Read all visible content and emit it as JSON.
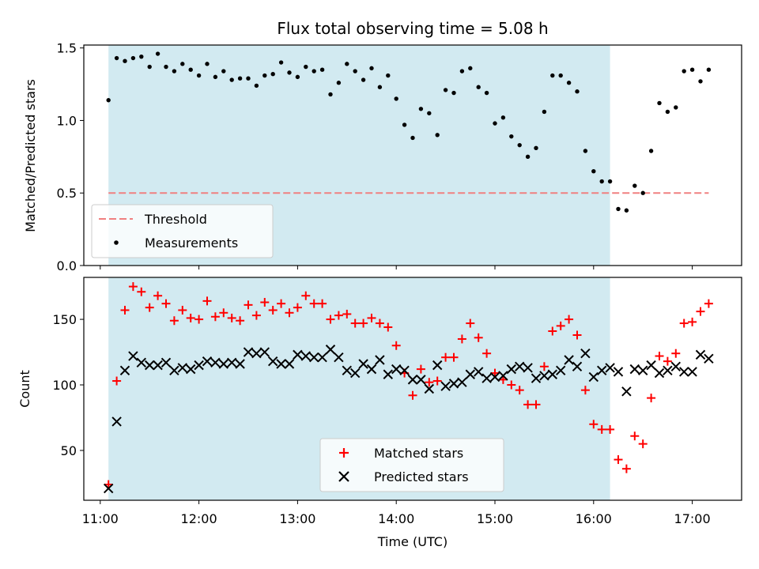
{
  "chart_data": {
    "type": "scatter",
    "title": "Flux total observing time = 5.08 h",
    "xlabel": "Time (UTC)",
    "x_ticks": [
      "11:00",
      "12:00",
      "13:00",
      "14:00",
      "15:00",
      "16:00",
      "17:00"
    ],
    "x_range": [
      "10:50",
      "17:30"
    ],
    "observing_window": [
      "11:05",
      "16:10"
    ],
    "colors": {
      "window": "#add8e6",
      "threshold": "#f08080",
      "measurements": "#000000",
      "matched": "#ff0000",
      "predicted": "#000000"
    },
    "panels": [
      {
        "ylabel": "Matched/Predicted stars",
        "ylim": [
          0,
          1.52
        ],
        "y_ticks": [
          "0.0",
          "0.5",
          "1.0",
          "1.5"
        ],
        "legend_position": "lower-left",
        "threshold": {
          "name": "Threshold",
          "value": 0.5,
          "x_range": [
            "11:05",
            "17:10"
          ]
        },
        "series": [
          {
            "name": "Measurements",
            "marker": "dot",
            "x": [
              "11:05",
              "11:10",
              "11:15",
              "11:20",
              "11:25",
              "11:30",
              "11:35",
              "11:40",
              "11:45",
              "11:50",
              "11:55",
              "12:00",
              "12:05",
              "12:10",
              "12:15",
              "12:20",
              "12:25",
              "12:30",
              "12:35",
              "12:40",
              "12:45",
              "12:50",
              "12:55",
              "13:00",
              "13:05",
              "13:10",
              "13:15",
              "13:20",
              "13:25",
              "13:30",
              "13:35",
              "13:40",
              "13:45",
              "13:50",
              "13:55",
              "14:00",
              "14:05",
              "14:10",
              "14:15",
              "14:20",
              "14:25",
              "14:30",
              "14:35",
              "14:40",
              "14:45",
              "14:50",
              "14:55",
              "15:00",
              "15:05",
              "15:10",
              "15:15",
              "15:20",
              "15:25",
              "15:30",
              "15:35",
              "15:40",
              "15:45",
              "15:50",
              "15:55",
              "16:00",
              "16:05",
              "16:10",
              "16:15",
              "16:20",
              "16:25",
              "16:30",
              "16:35",
              "16:40",
              "16:45",
              "16:50",
              "16:55",
              "17:00",
              "17:05",
              "17:10"
            ],
            "y": [
              1.14,
              1.43,
              1.41,
              1.43,
              1.44,
              1.37,
              1.46,
              1.37,
              1.34,
              1.39,
              1.35,
              1.31,
              1.39,
              1.3,
              1.34,
              1.28,
              1.29,
              1.29,
              1.24,
              1.31,
              1.32,
              1.4,
              1.33,
              1.3,
              1.37,
              1.34,
              1.35,
              1.18,
              1.26,
              1.39,
              1.34,
              1.28,
              1.36,
              1.23,
              1.31,
              1.15,
              0.97,
              0.88,
              1.08,
              1.05,
              0.9,
              1.21,
              1.19,
              1.34,
              1.36,
              1.23,
              1.19,
              0.98,
              1.02,
              0.89,
              0.83,
              0.75,
              0.81,
              1.06,
              1.31,
              1.31,
              1.26,
              1.2,
              0.79,
              0.65,
              0.58,
              0.58,
              0.39,
              0.38,
              0.55,
              0.5,
              0.79,
              1.12,
              1.06,
              1.09,
              1.34,
              1.35,
              1.27,
              1.35
            ]
          }
        ]
      },
      {
        "ylabel": "Count",
        "ylim": [
          12,
          182
        ],
        "y_ticks": [
          "50",
          "100",
          "150"
        ],
        "legend_position": "lower-center",
        "series": [
          {
            "name": "Matched stars",
            "marker": "plus",
            "x": [
              "11:05",
              "11:10",
              "11:15",
              "11:20",
              "11:25",
              "11:30",
              "11:35",
              "11:40",
              "11:45",
              "11:50",
              "11:55",
              "12:00",
              "12:05",
              "12:10",
              "12:15",
              "12:20",
              "12:25",
              "12:30",
              "12:35",
              "12:40",
              "12:45",
              "12:50",
              "12:55",
              "13:00",
              "13:05",
              "13:10",
              "13:15",
              "13:20",
              "13:25",
              "13:30",
              "13:35",
              "13:40",
              "13:45",
              "13:50",
              "13:55",
              "14:00",
              "14:05",
              "14:10",
              "14:15",
              "14:20",
              "14:25",
              "14:30",
              "14:35",
              "14:40",
              "14:45",
              "14:50",
              "14:55",
              "15:00",
              "15:05",
              "15:10",
              "15:15",
              "15:20",
              "15:25",
              "15:30",
              "15:35",
              "15:40",
              "15:45",
              "15:50",
              "15:55",
              "16:00",
              "16:05",
              "16:10",
              "16:15",
              "16:20",
              "16:25",
              "16:30",
              "16:35",
              "16:40",
              "16:45",
              "16:50",
              "16:55",
              "17:00",
              "17:05",
              "17:10"
            ],
            "y": [
              24,
              103,
              157,
              175,
              171,
              159,
              168,
              162,
              149,
              157,
              151,
              150,
              164,
              152,
              155,
              151,
              149,
              161,
              153,
              163,
              157,
              162,
              155,
              159,
              168,
              162,
              162,
              150,
              153,
              154,
              147,
              147,
              151,
              147,
              144,
              130,
              109,
              92,
              112,
              102,
              103,
              121,
              121,
              135,
              147,
              136,
              124,
              109,
              104,
              100,
              96,
              85,
              85,
              114,
              141,
              145,
              150,
              138,
              96,
              70,
              66,
              66,
              43,
              36,
              61,
              55,
              90,
              122,
              118,
              124,
              147,
              148,
              156,
              162
            ]
          },
          {
            "name": "Predicted stars",
            "marker": "x",
            "x": [
              "11:05",
              "11:10",
              "11:15",
              "11:20",
              "11:25",
              "11:30",
              "11:35",
              "11:40",
              "11:45",
              "11:50",
              "11:55",
              "12:00",
              "12:05",
              "12:10",
              "12:15",
              "12:20",
              "12:25",
              "12:30",
              "12:35",
              "12:40",
              "12:45",
              "12:50",
              "12:55",
              "13:00",
              "13:05",
              "13:10",
              "13:15",
              "13:20",
              "13:25",
              "13:30",
              "13:35",
              "13:40",
              "13:45",
              "13:50",
              "13:55",
              "14:00",
              "14:05",
              "14:10",
              "14:15",
              "14:20",
              "14:25",
              "14:30",
              "14:35",
              "14:40",
              "14:45",
              "14:50",
              "14:55",
              "15:00",
              "15:05",
              "15:10",
              "15:15",
              "15:20",
              "15:25",
              "15:30",
              "15:35",
              "15:40",
              "15:45",
              "15:50",
              "15:55",
              "16:00",
              "16:05",
              "16:10",
              "16:15",
              "16:20",
              "16:25",
              "16:30",
              "16:35",
              "16:40",
              "16:45",
              "16:50",
              "16:55",
              "17:00",
              "17:05",
              "17:10"
            ],
            "y": [
              21,
              72,
              111,
              122,
              117,
              115,
              115,
              117,
              111,
              113,
              112,
              115,
              118,
              117,
              116,
              117,
              116,
              125,
              124,
              125,
              118,
              116,
              116,
              123,
              122,
              121,
              121,
              127,
              121,
              111,
              109,
              116,
              112,
              119,
              108,
              112,
              111,
              104,
              104,
              97,
              115,
              99,
              101,
              102,
              108,
              110,
              105,
              106,
              107,
              112,
              114,
              113,
              105,
              107,
              108,
              111,
              119,
              114,
              124,
              106,
              111,
              113,
              110,
              95,
              112,
              111,
              115,
              109,
              111,
              114,
              110,
              110,
              123,
              120
            ]
          }
        ]
      }
    ]
  }
}
